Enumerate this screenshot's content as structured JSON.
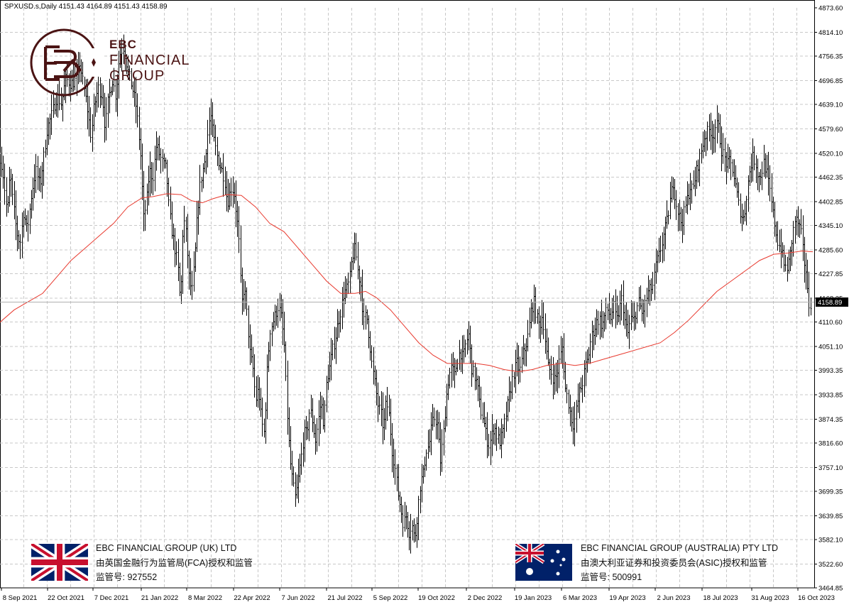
{
  "header": {
    "symbol_line": "SPXUSD.s,Daily  4151.43 4164.89 4151.43 4158.89"
  },
  "brand": {
    "short": "EBC",
    "line1": "FINANCIAL",
    "line2": "GROUP"
  },
  "regulators": [
    {
      "flag": "uk-flag-icon",
      "name": "EBC FINANCIAL GROUP (UK) LTD",
      "authority": "由英国金融行为监管局(FCA)授权和监管",
      "license": "监管号: 927552"
    },
    {
      "flag": "australia-flag-icon",
      "name": "EBC FINANCIAL GROUP (AUSTRALIA) PTY LTD",
      "authority": "由澳大利亚证券和投资委员会(ASIC)授权和监管",
      "license": "监管号: 500991"
    }
  ],
  "colors": {
    "candle": "#000000",
    "moving_average": "#e8392e",
    "grid": "#c8c8c8",
    "brand": "#4b1414"
  },
  "chart_data": {
    "type": "bar",
    "symbol": "SPXUSD.s",
    "timeframe": "Daily",
    "current_price": "4158.89",
    "ylim": [
      3464.85,
      4873.6
    ],
    "y_ticks": [
      "4873.60",
      "4814.10",
      "4756.35",
      "4696.85",
      "4639.10",
      "4579.60",
      "4520.10",
      "4462.35",
      "4402.85",
      "4345.10",
      "4285.60",
      "4227.85",
      "4168.35",
      "4110.60",
      "4051.10",
      "3993.35",
      "3933.85",
      "3874.35",
      "3816.60",
      "3757.10",
      "3699.35",
      "3639.85",
      "3582.10",
      "3522.60",
      "3464.85"
    ],
    "x_ticks": [
      "8 Sep 2021",
      "22 Oct 2021",
      "7 Dec 2021",
      "21 Jan 2022",
      "8 Mar 2022",
      "22 Apr 2022",
      "7 Jun 2022",
      "21 Jul 2022",
      "5 Sep 2022",
      "19 Oct 2022",
      "2 Dec 2022",
      "19 Jan 2023",
      "6 Mar 2023",
      "19 Apr 2023",
      "2 Jun 2023",
      "18 Jul 2023",
      "31 Aug 2023",
      "16 Oct 2023"
    ],
    "grid": true,
    "price_path": [
      [
        0,
        4520
      ],
      [
        5,
        4460
      ],
      [
        10,
        4370
      ],
      [
        14,
        4475
      ],
      [
        18,
        4400
      ],
      [
        23,
        4330
      ],
      [
        28,
        4300
      ],
      [
        33,
        4380
      ],
      [
        38,
        4330
      ],
      [
        44,
        4420
      ],
      [
        50,
        4480
      ],
      [
        56,
        4440
      ],
      [
        62,
        4520
      ],
      [
        66,
        4580
      ],
      [
        72,
        4610
      ],
      [
        80,
        4660
      ],
      [
        86,
        4640
      ],
      [
        92,
        4700
      ],
      [
        100,
        4690
      ],
      [
        108,
        4700
      ],
      [
        112,
        4740
      ],
      [
        118,
        4680
      ],
      [
        122,
        4640
      ],
      [
        128,
        4560
      ],
      [
        132,
        4630
      ],
      [
        138,
        4680
      ],
      [
        144,
        4660
      ],
      [
        148,
        4580
      ],
      [
        152,
        4650
      ],
      [
        158,
        4700
      ],
      [
        163,
        4660
      ],
      [
        168,
        4760
      ],
      [
        174,
        4780
      ],
      [
        180,
        4720
      ],
      [
        186,
        4680
      ],
      [
        192,
        4630
      ],
      [
        198,
        4510
      ],
      [
        202,
        4360
      ],
      [
        206,
        4400
      ],
      [
        210,
        4480
      ],
      [
        215,
        4460
      ],
      [
        220,
        4540
      ],
      [
        224,
        4520
      ],
      [
        228,
        4500
      ],
      [
        234,
        4480
      ],
      [
        238,
        4380
      ],
      [
        242,
        4330
      ],
      [
        246,
        4290
      ],
      [
        250,
        4250
      ],
      [
        254,
        4150
      ],
      [
        258,
        4370
      ],
      [
        262,
        4320
      ],
      [
        266,
        4220
      ],
      [
        270,
        4180
      ],
      [
        274,
        4260
      ],
      [
        278,
        4380
      ],
      [
        282,
        4450
      ],
      [
        288,
        4500
      ],
      [
        292,
        4560
      ],
      [
        296,
        4620
      ],
      [
        300,
        4560
      ],
      [
        306,
        4510
      ],
      [
        312,
        4480
      ],
      [
        316,
        4460
      ],
      [
        320,
        4400
      ],
      [
        326,
        4440
      ],
      [
        330,
        4420
      ],
      [
        336,
        4320
      ],
      [
        340,
        4150
      ],
      [
        344,
        4200
      ],
      [
        348,
        4120
      ],
      [
        352,
        4030
      ],
      [
        356,
        4000
      ],
      [
        360,
        3920
      ],
      [
        364,
        3950
      ],
      [
        368,
        3870
      ],
      [
        372,
        3840
      ],
      [
        376,
        3990
      ],
      [
        380,
        4090
      ],
      [
        386,
        4120
      ],
      [
        392,
        4150
      ],
      [
        396,
        4120
      ],
      [
        400,
        4060
      ],
      [
        404,
        3900
      ],
      [
        408,
        3780
      ],
      [
        412,
        3720
      ],
      [
        416,
        3680
      ],
      [
        420,
        3730
      ],
      [
        424,
        3780
      ],
      [
        428,
        3840
      ],
      [
        432,
        3840
      ],
      [
        436,
        3900
      ],
      [
        440,
        3870
      ],
      [
        444,
        3820
      ],
      [
        448,
        3870
      ],
      [
        452,
        3920
      ],
      [
        456,
        3860
      ],
      [
        460,
        3970
      ],
      [
        464,
        4000
      ],
      [
        468,
        4040
      ],
      [
        472,
        4070
      ],
      [
        476,
        4110
      ],
      [
        480,
        4140
      ],
      [
        484,
        4180
      ],
      [
        488,
        4190
      ],
      [
        492,
        4210
      ],
      [
        496,
        4270
      ],
      [
        500,
        4290
      ],
      [
        504,
        4230
      ],
      [
        508,
        4200
      ],
      [
        512,
        4110
      ],
      [
        516,
        4130
      ],
      [
        520,
        4070
      ],
      [
        524,
        4000
      ],
      [
        528,
        3960
      ],
      [
        532,
        3910
      ],
      [
        536,
        3890
      ],
      [
        540,
        3850
      ],
      [
        544,
        3920
      ],
      [
        548,
        3880
      ],
      [
        552,
        3800
      ],
      [
        556,
        3760
      ],
      [
        560,
        3700
      ],
      [
        564,
        3660
      ],
      [
        568,
        3620
      ],
      [
        572,
        3640
      ],
      [
        576,
        3600
      ],
      [
        580,
        3620
      ],
      [
        584,
        3580
      ],
      [
        588,
        3650
      ],
      [
        592,
        3720
      ],
      [
        596,
        3740
      ],
      [
        600,
        3800
      ],
      [
        604,
        3810
      ],
      [
        608,
        3860
      ],
      [
        612,
        3880
      ],
      [
        616,
        3860
      ],
      [
        620,
        3770
      ],
      [
        624,
        3830
      ],
      [
        628,
        3920
      ],
      [
        632,
        3980
      ],
      [
        636,
        4000
      ],
      [
        640,
        3980
      ],
      [
        644,
        4020
      ],
      [
        648,
        4040
      ],
      [
        652,
        4020
      ],
      [
        656,
        4060
      ],
      [
        660,
        4080
      ],
      [
        664,
        4000
      ],
      [
        668,
        3980
      ],
      [
        672,
        3960
      ],
      [
        676,
        3900
      ],
      [
        680,
        3880
      ],
      [
        684,
        3840
      ],
      [
        688,
        3810
      ],
      [
        692,
        3830
      ],
      [
        696,
        3860
      ],
      [
        700,
        3830
      ],
      [
        704,
        3820
      ],
      [
        708,
        3840
      ],
      [
        712,
        3880
      ],
      [
        716,
        3920
      ],
      [
        720,
        3960
      ],
      [
        724,
        3990
      ],
      [
        728,
        4010
      ],
      [
        732,
        3990
      ],
      [
        736,
        4030
      ],
      [
        740,
        4050
      ],
      [
        744,
        4080
      ],
      [
        748,
        4140
      ],
      [
        752,
        4160
      ],
      [
        756,
        4120
      ],
      [
        760,
        4100
      ],
      [
        764,
        4130
      ],
      [
        768,
        4060
      ],
      [
        772,
        4000
      ],
      [
        776,
        3990
      ],
      [
        780,
        3970
      ],
      [
        784,
        3980
      ],
      [
        788,
        4020
      ],
      [
        792,
        4050
      ],
      [
        796,
        3950
      ],
      [
        800,
        3920
      ],
      [
        804,
        3880
      ],
      [
        808,
        3860
      ],
      [
        812,
        3900
      ],
      [
        816,
        3940
      ],
      [
        820,
        3960
      ],
      [
        824,
        4000
      ],
      [
        828,
        4020
      ],
      [
        832,
        4070
      ],
      [
        836,
        4090
      ],
      [
        840,
        4110
      ],
      [
        844,
        4120
      ],
      [
        848,
        4100
      ],
      [
        852,
        4130
      ],
      [
        856,
        4140
      ],
      [
        860,
        4120
      ],
      [
        864,
        4150
      ],
      [
        868,
        4110
      ],
      [
        872,
        4140
      ],
      [
        876,
        4170
      ],
      [
        880,
        4110
      ],
      [
        884,
        4080
      ],
      [
        888,
        4120
      ],
      [
        892,
        4110
      ],
      [
        896,
        4140
      ],
      [
        900,
        4160
      ],
      [
        904,
        4130
      ],
      [
        908,
        4150
      ],
      [
        912,
        4180
      ],
      [
        916,
        4190
      ],
      [
        920,
        4200
      ],
      [
        924,
        4250
      ],
      [
        928,
        4270
      ],
      [
        932,
        4300
      ],
      [
        936,
        4330
      ],
      [
        940,
        4360
      ],
      [
        944,
        4410
      ],
      [
        948,
        4450
      ],
      [
        952,
        4400
      ],
      [
        956,
        4370
      ],
      [
        960,
        4350
      ],
      [
        964,
        4380
      ],
      [
        968,
        4410
      ],
      [
        972,
        4440
      ],
      [
        976,
        4430
      ],
      [
        980,
        4470
      ],
      [
        984,
        4500
      ],
      [
        988,
        4530
      ],
      [
        992,
        4560
      ],
      [
        996,
        4570
      ],
      [
        1000,
        4580
      ],
      [
        1004,
        4560
      ],
      [
        1008,
        4590
      ],
      [
        1012,
        4580
      ],
      [
        1016,
        4530
      ],
      [
        1020,
        4510
      ],
      [
        1024,
        4490
      ],
      [
        1028,
        4500
      ],
      [
        1032,
        4480
      ],
      [
        1036,
        4440
      ],
      [
        1040,
        4400
      ],
      [
        1044,
        4370
      ],
      [
        1048,
        4360
      ],
      [
        1052,
        4430
      ],
      [
        1056,
        4480
      ],
      [
        1060,
        4510
      ],
      [
        1064,
        4500
      ],
      [
        1068,
        4460
      ],
      [
        1072,
        4470
      ],
      [
        1076,
        4500
      ],
      [
        1080,
        4470
      ],
      [
        1084,
        4430
      ],
      [
        1088,
        4380
      ],
      [
        1092,
        4340
      ],
      [
        1096,
        4300
      ],
      [
        1100,
        4290
      ],
      [
        1104,
        4250
      ],
      [
        1108,
        4240
      ],
      [
        1112,
        4260
      ],
      [
        1116,
        4320
      ],
      [
        1120,
        4360
      ],
      [
        1124,
        4350
      ],
      [
        1128,
        4330
      ],
      [
        1132,
        4260
      ],
      [
        1136,
        4230
      ],
      [
        1138,
        4150
      ],
      [
        1142,
        4159
      ]
    ],
    "moving_average_path": [
      [
        0,
        4110
      ],
      [
        20,
        4140
      ],
      [
        40,
        4160
      ],
      [
        60,
        4180
      ],
      [
        80,
        4220
      ],
      [
        100,
        4260
      ],
      [
        120,
        4290
      ],
      [
        140,
        4320
      ],
      [
        160,
        4350
      ],
      [
        180,
        4390
      ],
      [
        200,
        4412
      ],
      [
        215,
        4415
      ],
      [
        235,
        4422
      ],
      [
        255,
        4420
      ],
      [
        270,
        4405
      ],
      [
        285,
        4400
      ],
      [
        300,
        4410
      ],
      [
        320,
        4420
      ],
      [
        340,
        4418
      ],
      [
        360,
        4390
      ],
      [
        380,
        4350
      ],
      [
        400,
        4330
      ],
      [
        420,
        4290
      ],
      [
        440,
        4250
      ],
      [
        460,
        4210
      ],
      [
        480,
        4180
      ],
      [
        500,
        4180
      ],
      [
        515,
        4185
      ],
      [
        530,
        4170
      ],
      [
        550,
        4140
      ],
      [
        570,
        4100
      ],
      [
        590,
        4060
      ],
      [
        610,
        4030
      ],
      [
        630,
        4010
      ],
      [
        650,
        4010
      ],
      [
        670,
        4010
      ],
      [
        690,
        4005
      ],
      [
        710,
        3995
      ],
      [
        730,
        3990
      ],
      [
        750,
        3995
      ],
      [
        770,
        4005
      ],
      [
        790,
        4010
      ],
      [
        810,
        4005
      ],
      [
        830,
        4010
      ],
      [
        850,
        4020
      ],
      [
        870,
        4030
      ],
      [
        890,
        4040
      ],
      [
        910,
        4050
      ],
      [
        930,
        4060
      ],
      [
        950,
        4085
      ],
      [
        970,
        4115
      ],
      [
        990,
        4150
      ],
      [
        1010,
        4185
      ],
      [
        1030,
        4210
      ],
      [
        1050,
        4235
      ],
      [
        1070,
        4260
      ],
      [
        1090,
        4275
      ],
      [
        1110,
        4278
      ],
      [
        1130,
        4283
      ],
      [
        1145,
        4281
      ]
    ]
  }
}
